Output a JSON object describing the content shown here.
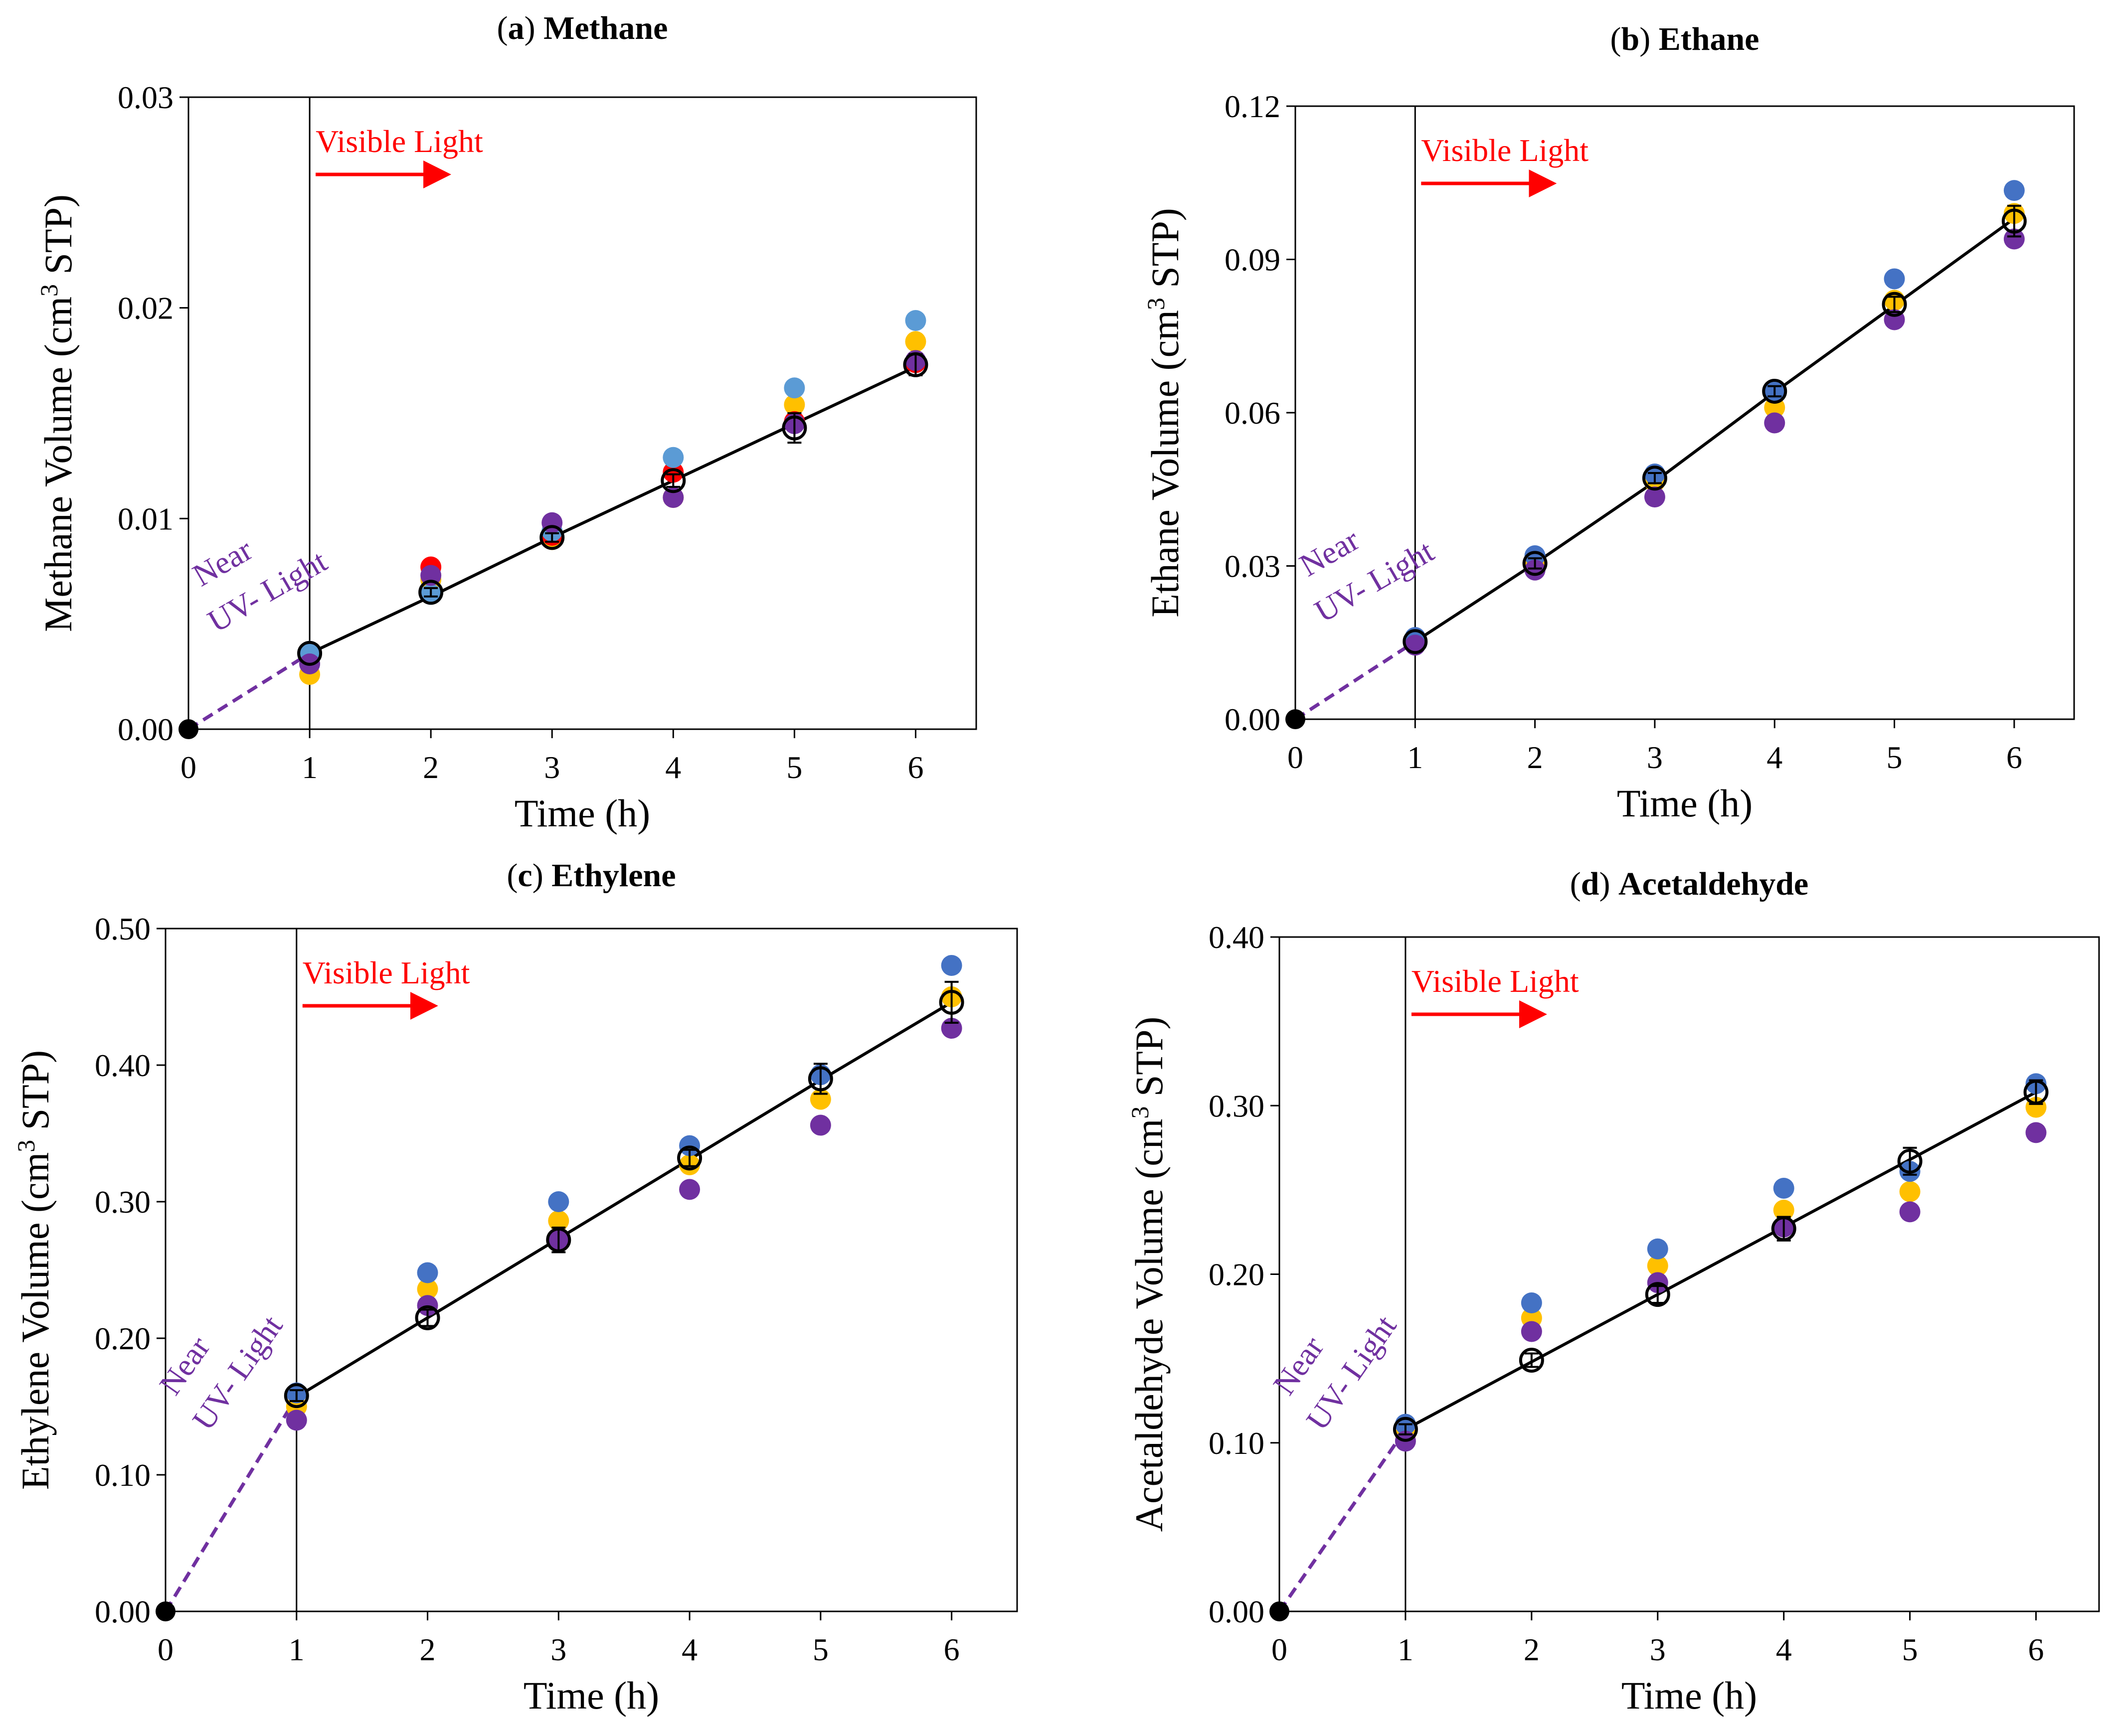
{
  "chart_data": [
    {
      "type": "scatter",
      "panel_label": "a",
      "title": "Methane",
      "xlabel": "Time (h)",
      "ylabel_main": "Methane Volume (cm",
      "ylabel_sup": "3",
      "ylabel_end": " STP)",
      "xlim": [
        0,
        6.5
      ],
      "ylim": [
        0,
        0.03
      ],
      "xticks": [
        0,
        1,
        2,
        3,
        4,
        5,
        6
      ],
      "yticks": [
        0,
        0.01,
        0.02,
        0.03
      ],
      "ytick_labels": [
        "0.00",
        "0.01",
        "0.02",
        "0.03"
      ],
      "vline_x": 1,
      "annotation_visible": "Visible Light",
      "annotation_uv_1": "Near",
      "annotation_uv_2": "UV- Light",
      "fit_line": {
        "x": [
          1,
          2,
          3,
          4,
          5,
          6
        ],
        "y": [
          0.0036,
          0.0063,
          0.0091,
          0.0118,
          0.0145,
          0.0172
        ]
      },
      "uv_line": {
        "x": [
          0,
          1
        ],
        "y": [
          0,
          0.0036
        ]
      },
      "mean_points": {
        "x": [
          0,
          1,
          2,
          3,
          4,
          5,
          6
        ],
        "y": [
          0,
          0.0036,
          0.0065,
          0.0091,
          0.0118,
          0.0143,
          0.0173
        ],
        "err": [
          0,
          0,
          0.0002,
          0.0002,
          0.0003,
          0.0007,
          0.0005
        ]
      },
      "series": [
        {
          "name": "yellow",
          "color": "#ffc000",
          "x": [
            0,
            1,
            2,
            3,
            4,
            5,
            6
          ],
          "values": [
            0,
            0.0026,
            0.0071,
            0.009,
            0.011,
            0.0154,
            0.0184
          ]
        },
        {
          "name": "red",
          "color": "#ff0000",
          "x": [
            0,
            1,
            2,
            3,
            4,
            5,
            6
          ],
          "values": [
            0,
            0.0035,
            0.0077,
            0.0092,
            0.0122,
            0.0146,
            0.0174
          ]
        },
        {
          "name": "lightblue",
          "color": "#5b9bd5",
          "x": [
            0,
            1,
            2,
            3,
            4,
            5,
            6
          ],
          "values": [
            0,
            0.0037,
            0.0064,
            0.0094,
            0.0129,
            0.0162,
            0.0194
          ]
        },
        {
          "name": "purple",
          "color": "#7030a0",
          "x": [
            0,
            1,
            2,
            3,
            4,
            5,
            6
          ],
          "values": [
            0,
            0.0031,
            0.0073,
            0.0098,
            0.011,
            0.0145,
            0.0175
          ]
        }
      ]
    },
    {
      "type": "scatter",
      "panel_label": "b",
      "title": "Ethane",
      "xlabel": "Time (h)",
      "ylabel_main": "Ethane Volume (cm",
      "ylabel_sup": "3",
      "ylabel_end": " STP)",
      "xlim": [
        0,
        6.5
      ],
      "ylim": [
        0,
        0.12
      ],
      "xticks": [
        0,
        1,
        2,
        3,
        4,
        5,
        6
      ],
      "yticks": [
        0,
        0.03,
        0.06,
        0.09,
        0.12
      ],
      "ytick_labels": [
        "0.00",
        "0.03",
        "0.06",
        "0.09",
        "0.12"
      ],
      "vline_x": 1,
      "annotation_visible": "Visible Light",
      "annotation_uv_1": "Near",
      "annotation_uv_2": "UV- Light",
      "fit_line": {
        "x": [
          1,
          2,
          3,
          4,
          5,
          6
        ],
        "y": [
          0.0152,
          0.0305,
          0.0465,
          0.064,
          0.081,
          0.098
        ]
      },
      "uv_line": {
        "x": [
          0,
          1
        ],
        "y": [
          0,
          0.0152
        ]
      },
      "mean_points": {
        "x": [
          0,
          1,
          2,
          3,
          4,
          5,
          6
        ],
        "y": [
          0,
          0.0152,
          0.0305,
          0.0472,
          0.0642,
          0.0812,
          0.0975
        ],
        "err": [
          0,
          0,
          0.001,
          0.001,
          0.001,
          0.0015,
          0.003
        ]
      },
      "series": [
        {
          "name": "yellow",
          "color": "#ffc000",
          "x": [
            0,
            1,
            2,
            3,
            4,
            5,
            6
          ],
          "values": [
            0,
            0.015,
            0.0305,
            0.0465,
            0.061,
            0.082,
            0.099
          ]
        },
        {
          "name": "blue",
          "color": "#4472c4",
          "x": [
            0,
            1,
            2,
            3,
            4,
            5,
            6
          ],
          "values": [
            0,
            0.016,
            0.032,
            0.048,
            0.064,
            0.0862,
            0.1035
          ]
        },
        {
          "name": "purple",
          "color": "#7030a0",
          "x": [
            0,
            1,
            2,
            3,
            4,
            5,
            6
          ],
          "values": [
            0,
            0.0145,
            0.0292,
            0.0435,
            0.058,
            0.0782,
            0.094
          ]
        }
      ]
    },
    {
      "type": "scatter",
      "panel_label": "c",
      "title": "Ethylene",
      "xlabel": "Time (h)",
      "ylabel_main": "Ethylene Volume (cm",
      "ylabel_sup": "3",
      "ylabel_end": " STP)",
      "xlim": [
        0,
        6.5
      ],
      "ylim": [
        0,
        0.5
      ],
      "xticks": [
        0,
        1,
        2,
        3,
        4,
        5,
        6
      ],
      "yticks": [
        0,
        0.1,
        0.2,
        0.3,
        0.4,
        0.5
      ],
      "ytick_labels": [
        "0.00",
        "0.10",
        "0.20",
        "0.30",
        "0.40",
        "0.50"
      ],
      "vline_x": 1,
      "annotation_visible": "Visible Light",
      "annotation_uv_1": "Near",
      "annotation_uv_2": "UV- Light",
      "fit_line": {
        "x": [
          1,
          2,
          3,
          4,
          5,
          6
        ],
        "y": [
          0.157,
          0.215,
          0.273,
          0.331,
          0.389,
          0.446
        ]
      },
      "uv_line": {
        "x": [
          0,
          1
        ],
        "y": [
          0,
          0.157
        ]
      },
      "mean_points": {
        "x": [
          0,
          1,
          2,
          3,
          4,
          5,
          6
        ],
        "y": [
          0,
          0.158,
          0.215,
          0.272,
          0.332,
          0.39,
          0.446
        ],
        "err": [
          0,
          0.004,
          0.006,
          0.009,
          0.006,
          0.011,
          0.015
        ]
      },
      "series": [
        {
          "name": "yellow",
          "color": "#ffc000",
          "x": [
            0,
            1,
            2,
            3,
            4,
            5,
            6
          ],
          "values": [
            0,
            0.15,
            0.236,
            0.286,
            0.327,
            0.375,
            0.45
          ]
        },
        {
          "name": "blue",
          "color": "#4472c4",
          "x": [
            0,
            1,
            2,
            3,
            4,
            5,
            6
          ],
          "values": [
            0,
            0.16,
            0.248,
            0.3,
            0.341,
            0.393,
            0.473
          ]
        },
        {
          "name": "purple",
          "color": "#7030a0",
          "x": [
            0,
            1,
            2,
            3,
            4,
            5,
            6
          ],
          "values": [
            0,
            0.14,
            0.224,
            0.272,
            0.309,
            0.356,
            0.427
          ]
        }
      ]
    },
    {
      "type": "scatter",
      "panel_label": "d",
      "title": "Acetaldehyde",
      "xlabel": "Time (h)",
      "ylabel_main": "Acetaldehyde Volume (cm",
      "ylabel_sup": "3",
      "ylabel_end": " STP)",
      "xlim": [
        0,
        6.5
      ],
      "ylim": [
        0,
        0.4
      ],
      "xticks": [
        0,
        1,
        2,
        3,
        4,
        5,
        6
      ],
      "yticks": [
        0,
        0.1,
        0.2,
        0.3,
        0.4
      ],
      "ytick_labels": [
        "0.00",
        "0.10",
        "0.20",
        "0.30",
        "0.40"
      ],
      "vline_x": 1,
      "annotation_visible": "Visible Light",
      "annotation_uv_1": "Near",
      "annotation_uv_2": "UV- Light",
      "fit_line": {
        "x": [
          1,
          2,
          3,
          4,
          5,
          6
        ],
        "y": [
          0.108,
          0.148,
          0.188,
          0.228,
          0.268,
          0.308
        ]
      },
      "uv_line": {
        "x": [
          0,
          1
        ],
        "y": [
          0,
          0.108
        ]
      },
      "mean_points": {
        "x": [
          0,
          1,
          2,
          3,
          4,
          5,
          6
        ],
        "y": [
          0,
          0.108,
          0.149,
          0.188,
          0.227,
          0.267,
          0.308
        ],
        "err": [
          0,
          0.003,
          0.004,
          0.005,
          0.007,
          0.008,
          0.007
        ]
      },
      "series": [
        {
          "name": "yellow",
          "color": "#ffc000",
          "x": [
            0,
            1,
            2,
            3,
            4,
            5,
            6
          ],
          "values": [
            0,
            0.105,
            0.174,
            0.205,
            0.238,
            0.249,
            0.299
          ]
        },
        {
          "name": "blue",
          "color": "#4472c4",
          "x": [
            0,
            1,
            2,
            3,
            4,
            5,
            6
          ],
          "values": [
            0,
            0.111,
            0.183,
            0.215,
            0.251,
            0.261,
            0.313
          ]
        },
        {
          "name": "purple",
          "color": "#7030a0",
          "x": [
            0,
            1,
            2,
            3,
            4,
            5,
            6
          ],
          "values": [
            0,
            0.101,
            0.166,
            0.195,
            0.228,
            0.237,
            0.284
          ]
        }
      ]
    }
  ]
}
